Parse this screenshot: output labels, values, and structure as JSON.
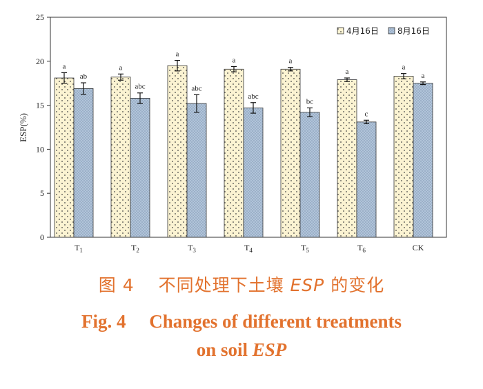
{
  "chart_data": {
    "type": "bar",
    "ylabel": "ESP(%)",
    "xlabel": "",
    "ylim": [
      0,
      25
    ],
    "yticks": [
      "0",
      "5",
      "10",
      "15",
      "20",
      "25"
    ],
    "categories": [
      "T1",
      "T2",
      "T3",
      "T4",
      "T5",
      "T6",
      "CK"
    ],
    "category_labels": [
      {
        "base": "T",
        "sub": "1"
      },
      {
        "base": "T",
        "sub": "2"
      },
      {
        "base": "T",
        "sub": "3"
      },
      {
        "base": "T",
        "sub": "4"
      },
      {
        "base": "T",
        "sub": "5"
      },
      {
        "base": "T",
        "sub": "6"
      },
      {
        "base": "CK",
        "sub": ""
      }
    ],
    "series": [
      {
        "name": "4月16日",
        "values": [
          18.1,
          18.2,
          19.5,
          19.1,
          19.1,
          17.9,
          18.3
        ],
        "errors": [
          0.6,
          0.35,
          0.6,
          0.3,
          0.2,
          0.2,
          0.3
        ],
        "letters": [
          "a",
          "a",
          "a",
          "a",
          "a",
          "a",
          "a"
        ],
        "fill": "#fbf3d2",
        "pattern": "dots"
      },
      {
        "name": "8月16日",
        "values": [
          16.9,
          15.8,
          15.2,
          14.7,
          14.2,
          13.1,
          17.5
        ],
        "errors": [
          0.65,
          0.6,
          1.0,
          0.6,
          0.5,
          0.2,
          0.15
        ],
        "letters": [
          "ab",
          "abc",
          "abc",
          "abc",
          "bc",
          "c",
          "a"
        ],
        "fill": "#b4c7dc",
        "pattern": "crosshatch"
      }
    ],
    "legend_position": "top-right",
    "grid": false
  },
  "caption": {
    "cn_pre": "图 4　 不同处理下土壤 ",
    "cn_italic": "ESP",
    "cn_post": " 的变化",
    "en_line1": "Fig. 4　 Changes of different treatments",
    "en_line2_pre": "on soil ",
    "en_line2_italic": "ESP",
    "color": "#e2722e"
  }
}
